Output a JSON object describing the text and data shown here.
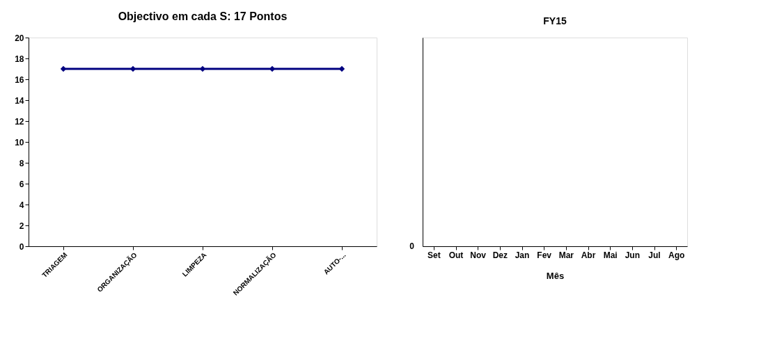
{
  "chart_data": [
    {
      "type": "line",
      "title": "Objectivo em cada S: 17 Pontos",
      "categories": [
        "TRIAGEM",
        "ORGANIZAÇÃO",
        "LIMPEZA",
        "NORMALIZAÇÃO",
        "AUTO-..."
      ],
      "series": [
        {
          "color": "#000080",
          "values": [
            17,
            17,
            17,
            17,
            17
          ]
        }
      ],
      "ylim": [
        0,
        20
      ],
      "yticks": [
        0,
        2,
        4,
        6,
        8,
        10,
        12,
        14,
        16,
        18,
        20
      ],
      "marker": "diamond",
      "line_style": "solid",
      "grid": false
    },
    {
      "type": "other",
      "title": "FY15",
      "xlabel": "Mês",
      "categories": [
        "Set",
        "Out",
        "Nov",
        "Dez",
        "Jan",
        "Fev",
        "Mar",
        "Abr",
        "Mai",
        "Jun",
        "Jul",
        "Ago"
      ],
      "annotations": [
        "0"
      ]
    }
  ]
}
